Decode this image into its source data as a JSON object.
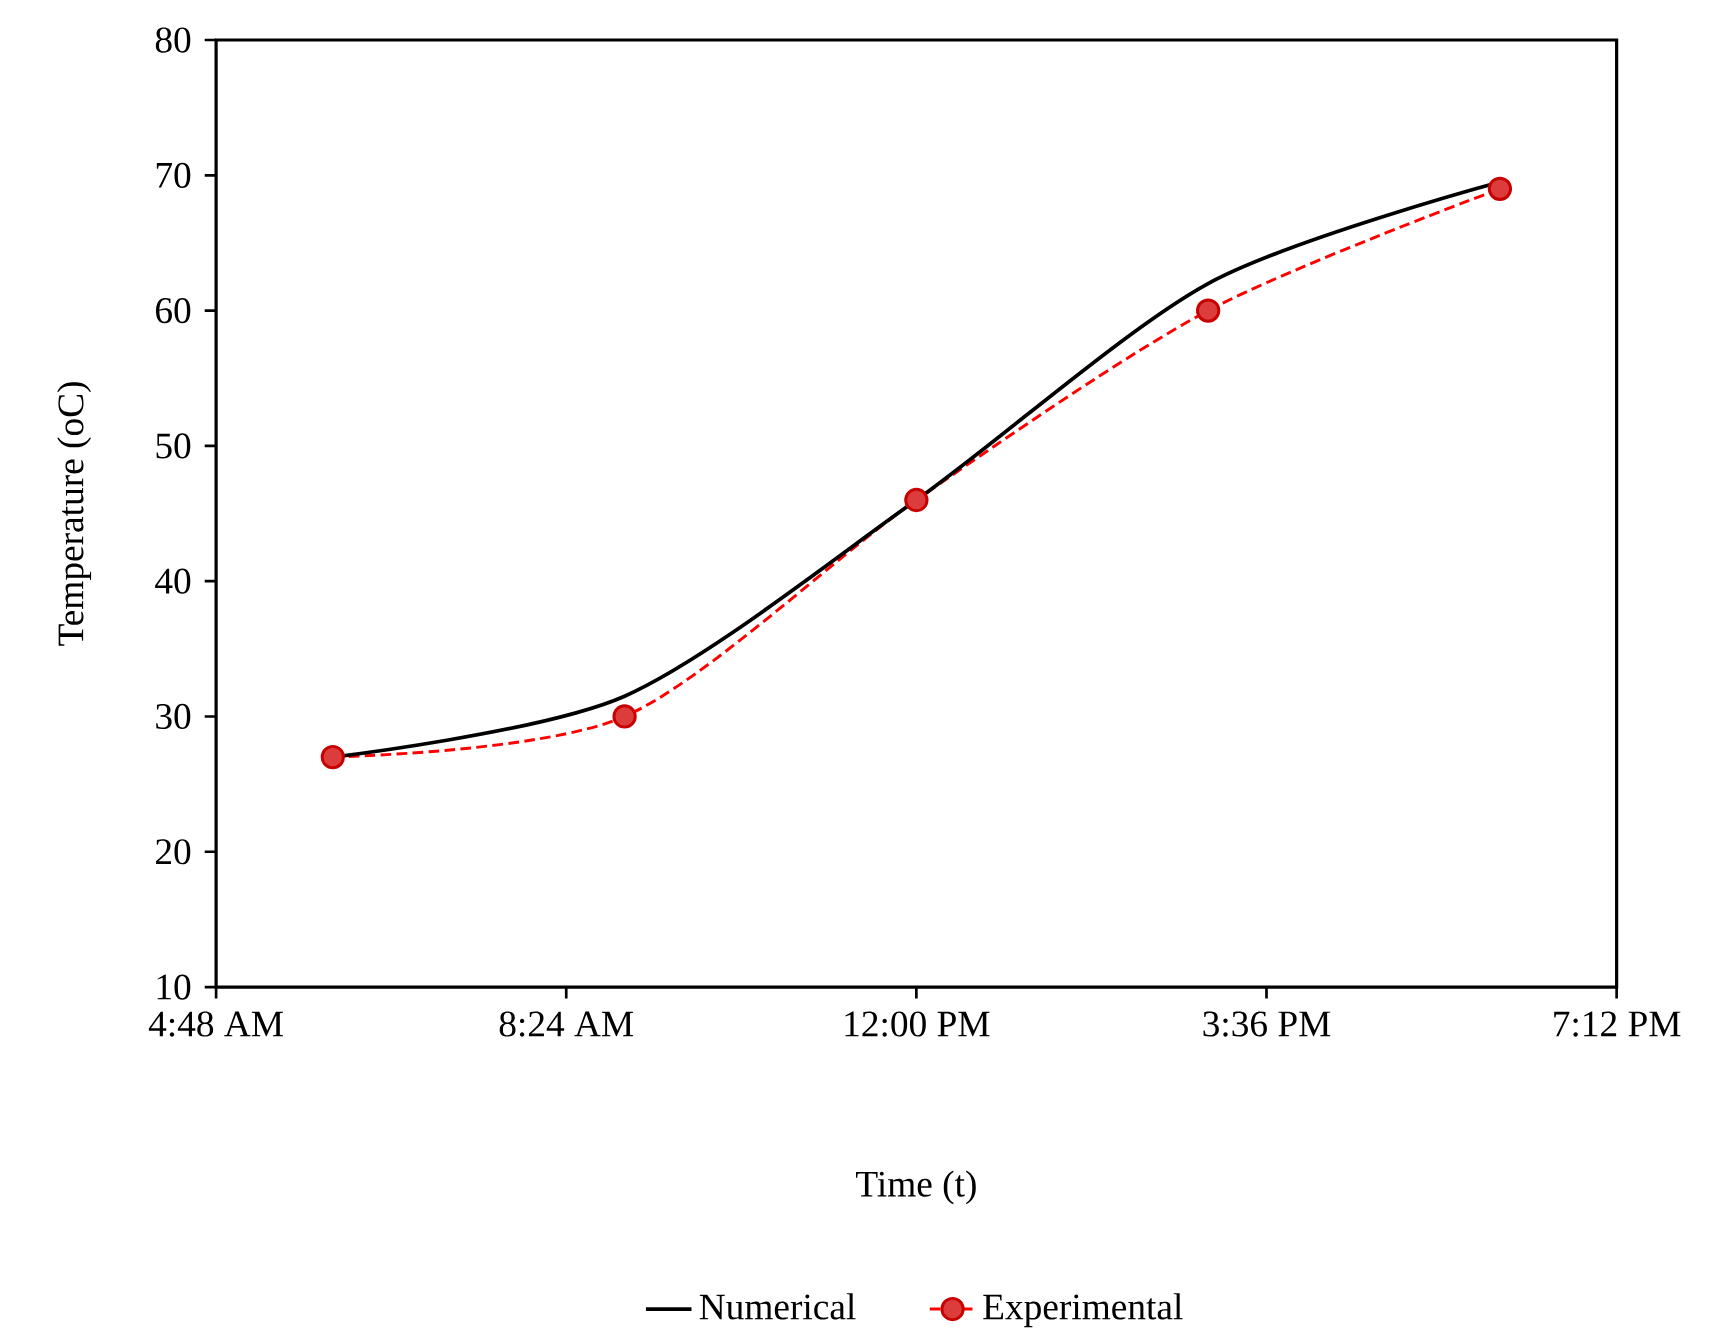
{
  "chart_data": {
    "type": "line",
    "xlabel": "Time (t)",
    "ylabel": "Temperature (oC)",
    "x": [
      6,
      9,
      12,
      15,
      18
    ],
    "series": [
      {
        "name": "Numerical",
        "color": "#000000",
        "values": [
          27,
          31.5,
          46,
          62,
          69.5
        ],
        "line_style": "solid",
        "marker": "none"
      },
      {
        "name": "Experimental",
        "color": "#ff0000",
        "values": [
          27,
          30,
          46,
          60,
          69
        ],
        "line_style": "dashed",
        "marker": "circle"
      }
    ],
    "xlim": [
      4.8,
      19.2
    ],
    "xticks": [
      {
        "value": 4.8,
        "label": "4:48 AM"
      },
      {
        "value": 8.4,
        "label": "8:24 AM"
      },
      {
        "value": 12,
        "label": "12:00 PM"
      },
      {
        "value": 15.6,
        "label": "3:36 PM"
      },
      {
        "value": 19.2,
        "label": "7:12 PM"
      }
    ],
    "ylim": [
      10,
      80
    ],
    "yticks": [
      10,
      20,
      30,
      40,
      50,
      60,
      70,
      80
    ],
    "grid": false,
    "legend": "bottom"
  }
}
